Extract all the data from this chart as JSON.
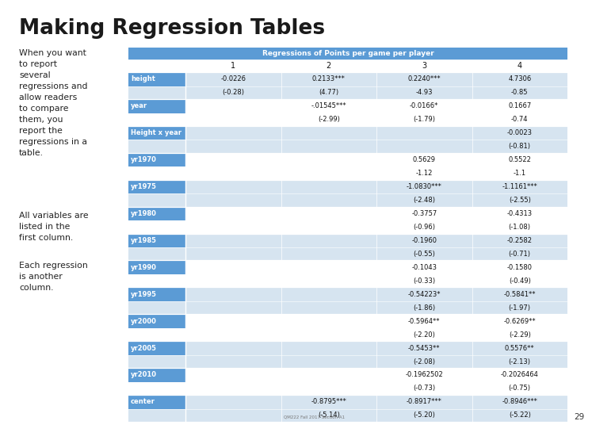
{
  "title": "Making Regression Tables",
  "background": "#ffffff",
  "text_left_1": "When you want\nto report\nseveral\nregressions and\nallow readers\nto compare\nthem, you\nreport the\nregressions in a\ntable.",
  "text_left_2": "All variables are\nlisted in the\nfirst column.",
  "text_left_3": "Each regression\nis another\ncolumn.",
  "table_title": "Regressions of Points per game per player",
  "header_bg": "#5B9BD5",
  "header_text_color": "#ffffff",
  "row_label_bg": "#5B9BD5",
  "row_label_text_color": "#ffffff",
  "alt_row_bg": "#D6E4F0",
  "white_row_bg": "#ffffff",
  "subheader_bg": "#ffffff",
  "rows": [
    {
      "label": "height",
      "values": [
        "-0.0226",
        "0.2133***",
        "0.2240***",
        "4.7306"
      ],
      "subvalues": [
        "(-0.28)",
        "(4.77)",
        "-4.93",
        "-0.85"
      ],
      "row_bg": "#D6E4F0"
    },
    {
      "label": "year",
      "values": [
        "",
        "-.01545***",
        "-0.0166*",
        "0.1667"
      ],
      "subvalues": [
        "",
        "(-2.99)",
        "(-1.79)",
        "-0.74"
      ],
      "row_bg": "#ffffff"
    },
    {
      "label": "Height x year",
      "values": [
        "",
        "",
        "",
        "-0.0023"
      ],
      "subvalues": [
        "",
        "",
        "",
        "(-0.81)"
      ],
      "row_bg": "#D6E4F0"
    },
    {
      "label": "yr1970",
      "values": [
        "",
        "",
        "0.5629",
        "0.5522"
      ],
      "subvalues": [
        "",
        "",
        "-1.12",
        "-1.1"
      ],
      "row_bg": "#ffffff"
    },
    {
      "label": "yr1975",
      "values": [
        "",
        "",
        "-1.0830***",
        "-1.1161***"
      ],
      "subvalues": [
        "",
        "",
        "(-2.48)",
        "(-2.55)"
      ],
      "row_bg": "#D6E4F0"
    },
    {
      "label": "yr1980",
      "values": [
        "",
        "",
        "-0.3757",
        "-0.4313"
      ],
      "subvalues": [
        "",
        "",
        "(-0.96)",
        "(-1.08)"
      ],
      "row_bg": "#ffffff"
    },
    {
      "label": "yr1985",
      "values": [
        "",
        "",
        "-0.1960",
        "-0.2582"
      ],
      "subvalues": [
        "",
        "",
        "(-0.55)",
        "(-0.71)"
      ],
      "row_bg": "#D6E4F0"
    },
    {
      "label": "yr1990",
      "values": [
        "",
        "",
        "-0.1043",
        "-0.1580"
      ],
      "subvalues": [
        "",
        "",
        "(-0.33)",
        "(-0.49)"
      ],
      "row_bg": "#ffffff"
    },
    {
      "label": "yr1995",
      "values": [
        "",
        "",
        "-0.54223*",
        "-0.5841**"
      ],
      "subvalues": [
        "",
        "",
        "(-1.86)",
        "(-1.97)"
      ],
      "row_bg": "#D6E4F0"
    },
    {
      "label": "yr2000",
      "values": [
        "",
        "",
        "-0.5964**",
        "-0.6269**"
      ],
      "subvalues": [
        "",
        "",
        "(-2.20)",
        "(-2.29)"
      ],
      "row_bg": "#ffffff"
    },
    {
      "label": "yr2005",
      "values": [
        "",
        "",
        "-0.5453**",
        "0.5576**"
      ],
      "subvalues": [
        "",
        "",
        "(-2.08)",
        "(-2.13)"
      ],
      "row_bg": "#D6E4F0"
    },
    {
      "label": "yr2010",
      "values": [
        "",
        "",
        "-0.1962502",
        "-0.2026464"
      ],
      "subvalues": [
        "",
        "",
        "(-0.73)",
        "(-0.75)"
      ],
      "row_bg": "#ffffff"
    },
    {
      "label": "center",
      "values": [
        "",
        "-0.8795***",
        "-0.8917***",
        "-0.8946***"
      ],
      "subvalues": [
        "",
        "(-5.14)",
        "(-5.20)",
        "(-5.22)"
      ],
      "row_bg": "#D6E4F0"
    }
  ],
  "watermark": "QM222 Fall 2017 Section A1",
  "page_number": "29"
}
